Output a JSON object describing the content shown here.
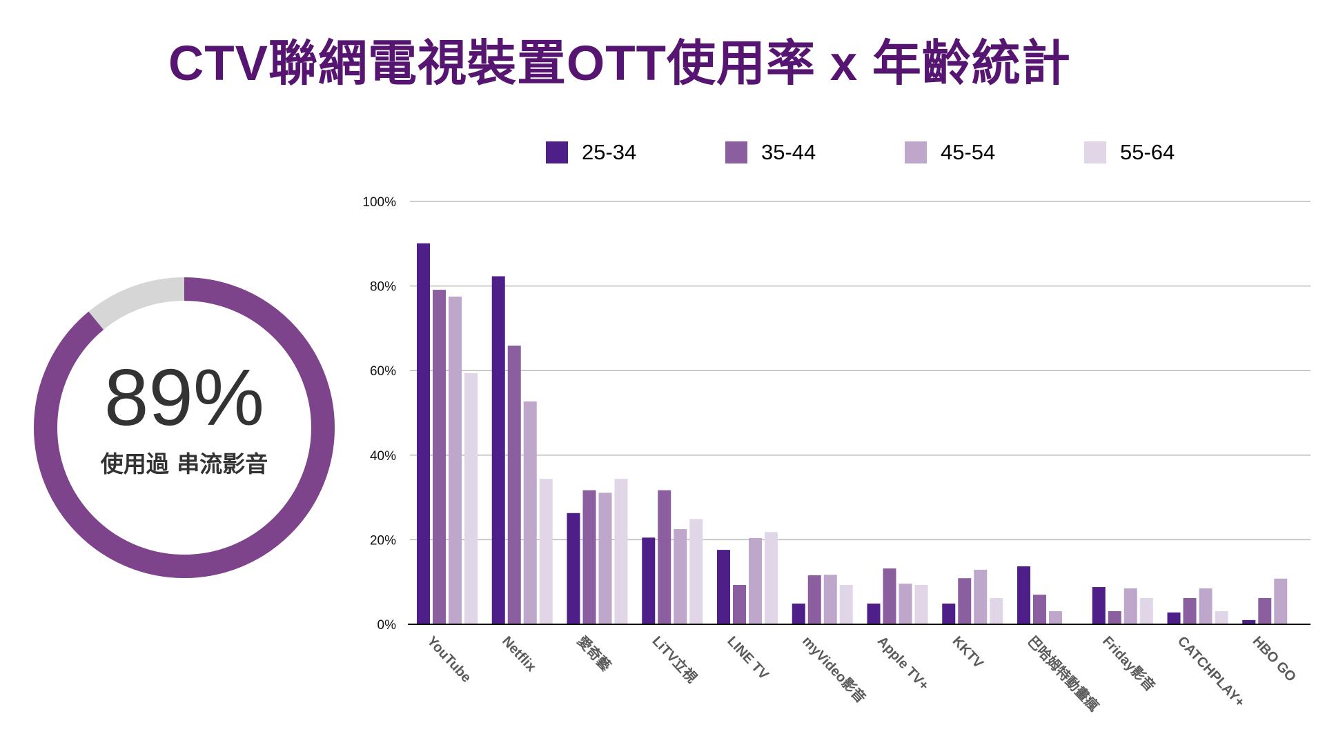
{
  "title": "CTV聯網電視裝置OTT使用率 x 年齡統計",
  "summary": {
    "value_label": "89%",
    "value": 89,
    "caption": "使用過 串流影音",
    "colors": {
      "filled": "#7d448c",
      "remainder": "#d6d6d6"
    }
  },
  "chart_data": {
    "type": "bar",
    "title": "",
    "xlabel": "",
    "ylabel": "",
    "ylim": [
      0,
      100
    ],
    "grid": true,
    "legend_position": "top",
    "y_ticks": [
      "0%",
      "20%",
      "40%",
      "60%",
      "80%",
      "100%"
    ],
    "y_tick_values": [
      0,
      20,
      40,
      60,
      80,
      100
    ],
    "categories": [
      "YouTube",
      "Netflix",
      "愛奇藝",
      "LiTV立視",
      "LINE TV",
      "myVideo影音",
      "Apple TV+",
      "KKTV",
      "巴哈姆特動畫瘋",
      "Friday影音",
      "CATCHPLAY+",
      "HBO GO"
    ],
    "series": [
      {
        "name": "25-34",
        "color": "#4e1f88",
        "values": [
          90.1,
          82.3,
          26.3,
          20.5,
          17.6,
          4.9,
          4.9,
          4.9,
          13.7,
          8.8,
          2.8,
          1.0
        ]
      },
      {
        "name": "35-44",
        "color": "#8b5e9f",
        "values": [
          79.1,
          65.9,
          31.7,
          31.7,
          9.3,
          11.6,
          13.2,
          10.9,
          7.0,
          3.1,
          6.2,
          6.2
        ]
      },
      {
        "name": "45-54",
        "color": "#bfa6cb",
        "values": [
          77.5,
          52.7,
          31.1,
          22.5,
          20.4,
          11.7,
          9.6,
          12.9,
          3.1,
          8.5,
          8.5,
          10.8
        ]
      },
      {
        "name": "55-64",
        "color": "#e1d6e8",
        "values": [
          59.4,
          34.4,
          34.4,
          24.9,
          21.8,
          9.3,
          9.3,
          6.2,
          0,
          6.2,
          3.1,
          0
        ]
      }
    ]
  }
}
